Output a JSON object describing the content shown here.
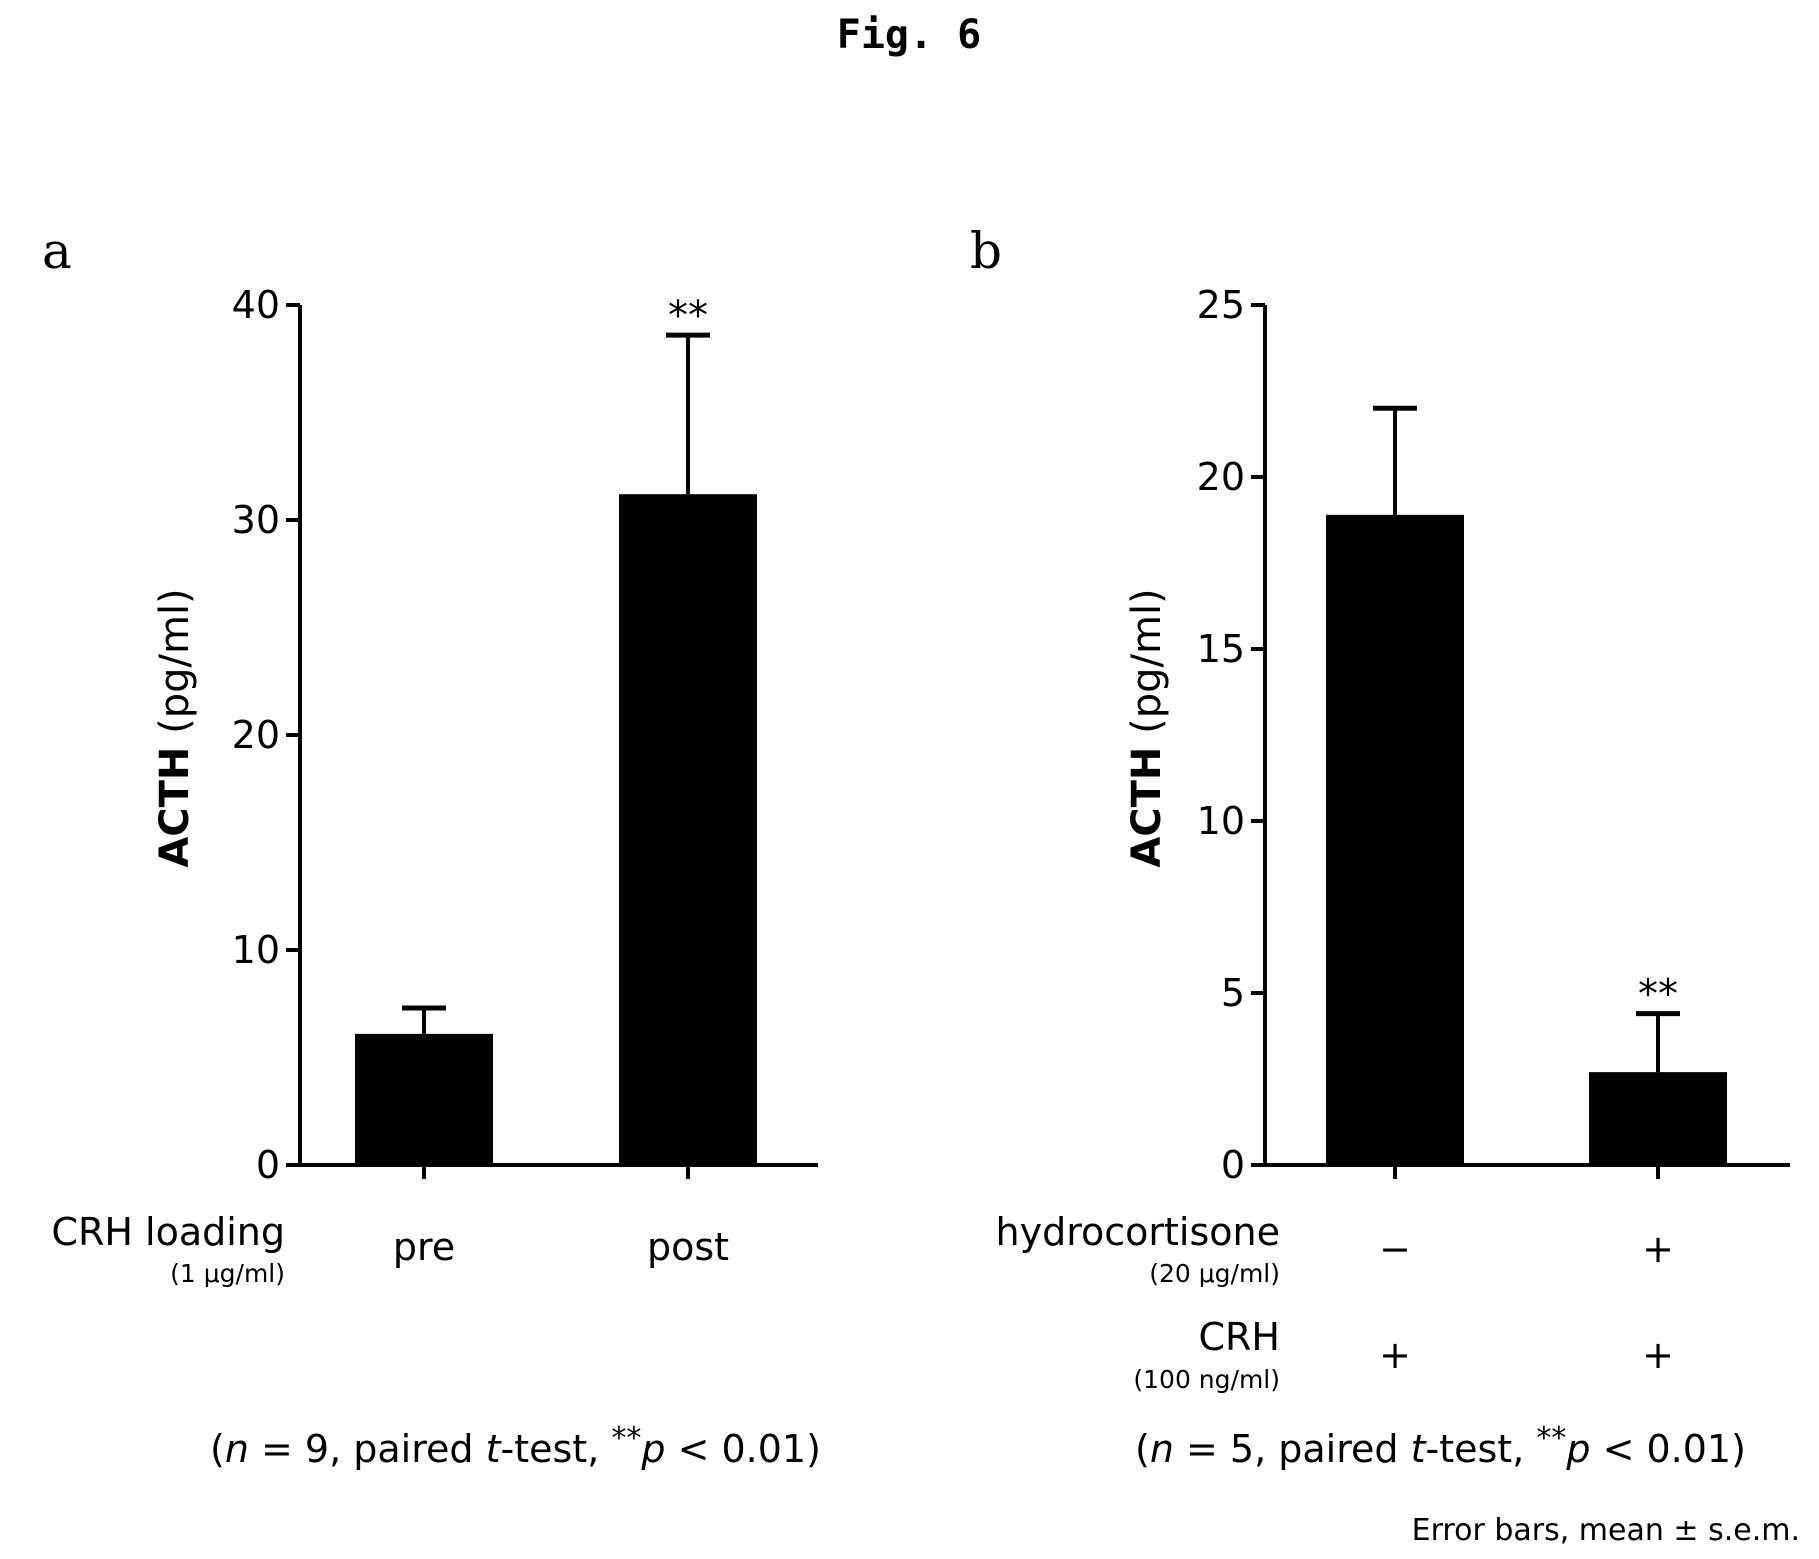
{
  "figure_title": "Fig. 6",
  "error_bar_note": "Error bars, mean ± s.e.m.",
  "chart_data": [
    {
      "type": "bar",
      "panel": "a",
      "ylabel_bold": "ACTH",
      "ylabel_unit": " (pg/ml)",
      "ylim": [
        0,
        40
      ],
      "yticks": [
        0,
        10,
        20,
        30,
        40
      ],
      "categories": [
        "pre",
        "post"
      ],
      "values": [
        6.1,
        31.2
      ],
      "errors": [
        1.2,
        7.4
      ],
      "significance": [
        "",
        "**"
      ],
      "condition_rows": [
        {
          "label": "CRH loading",
          "sublabel": "(1 μg/ml)",
          "values": [
            "pre",
            "post"
          ]
        }
      ],
      "footnote": {
        "open": "(",
        "n_symbol": "n",
        "n_text": " = 9, paired ",
        "t_symbol": "t",
        "test_text": "-test,  ",
        "stars": "**",
        "p_symbol": "p",
        "p_text": " < 0.01",
        "close": ")"
      }
    },
    {
      "type": "bar",
      "panel": "b",
      "ylabel_bold": "ACTH",
      "ylabel_unit": " (pg/ml)",
      "ylim": [
        0,
        25
      ],
      "yticks": [
        0,
        5,
        10,
        15,
        20,
        25
      ],
      "categories": [
        "hydrocortisone −, CRH +",
        "hydrocortisone +, CRH +"
      ],
      "values": [
        18.9,
        2.7
      ],
      "errors": [
        3.1,
        1.7
      ],
      "significance": [
        "",
        "**"
      ],
      "condition_rows": [
        {
          "label": "hydrocortisone",
          "sublabel": "(20 μg/ml)",
          "values": [
            "−",
            "+"
          ]
        },
        {
          "label": "CRH",
          "sublabel": "(100 ng/ml)",
          "values": [
            "+",
            "+"
          ]
        }
      ],
      "footnote": {
        "open": "(",
        "n_symbol": "n",
        "n_text": " = 5, paired ",
        "t_symbol": "t",
        "test_text": "-test,  ",
        "stars": "**",
        "p_symbol": "p",
        "p_text": " < 0.01",
        "close": ")"
      }
    }
  ]
}
